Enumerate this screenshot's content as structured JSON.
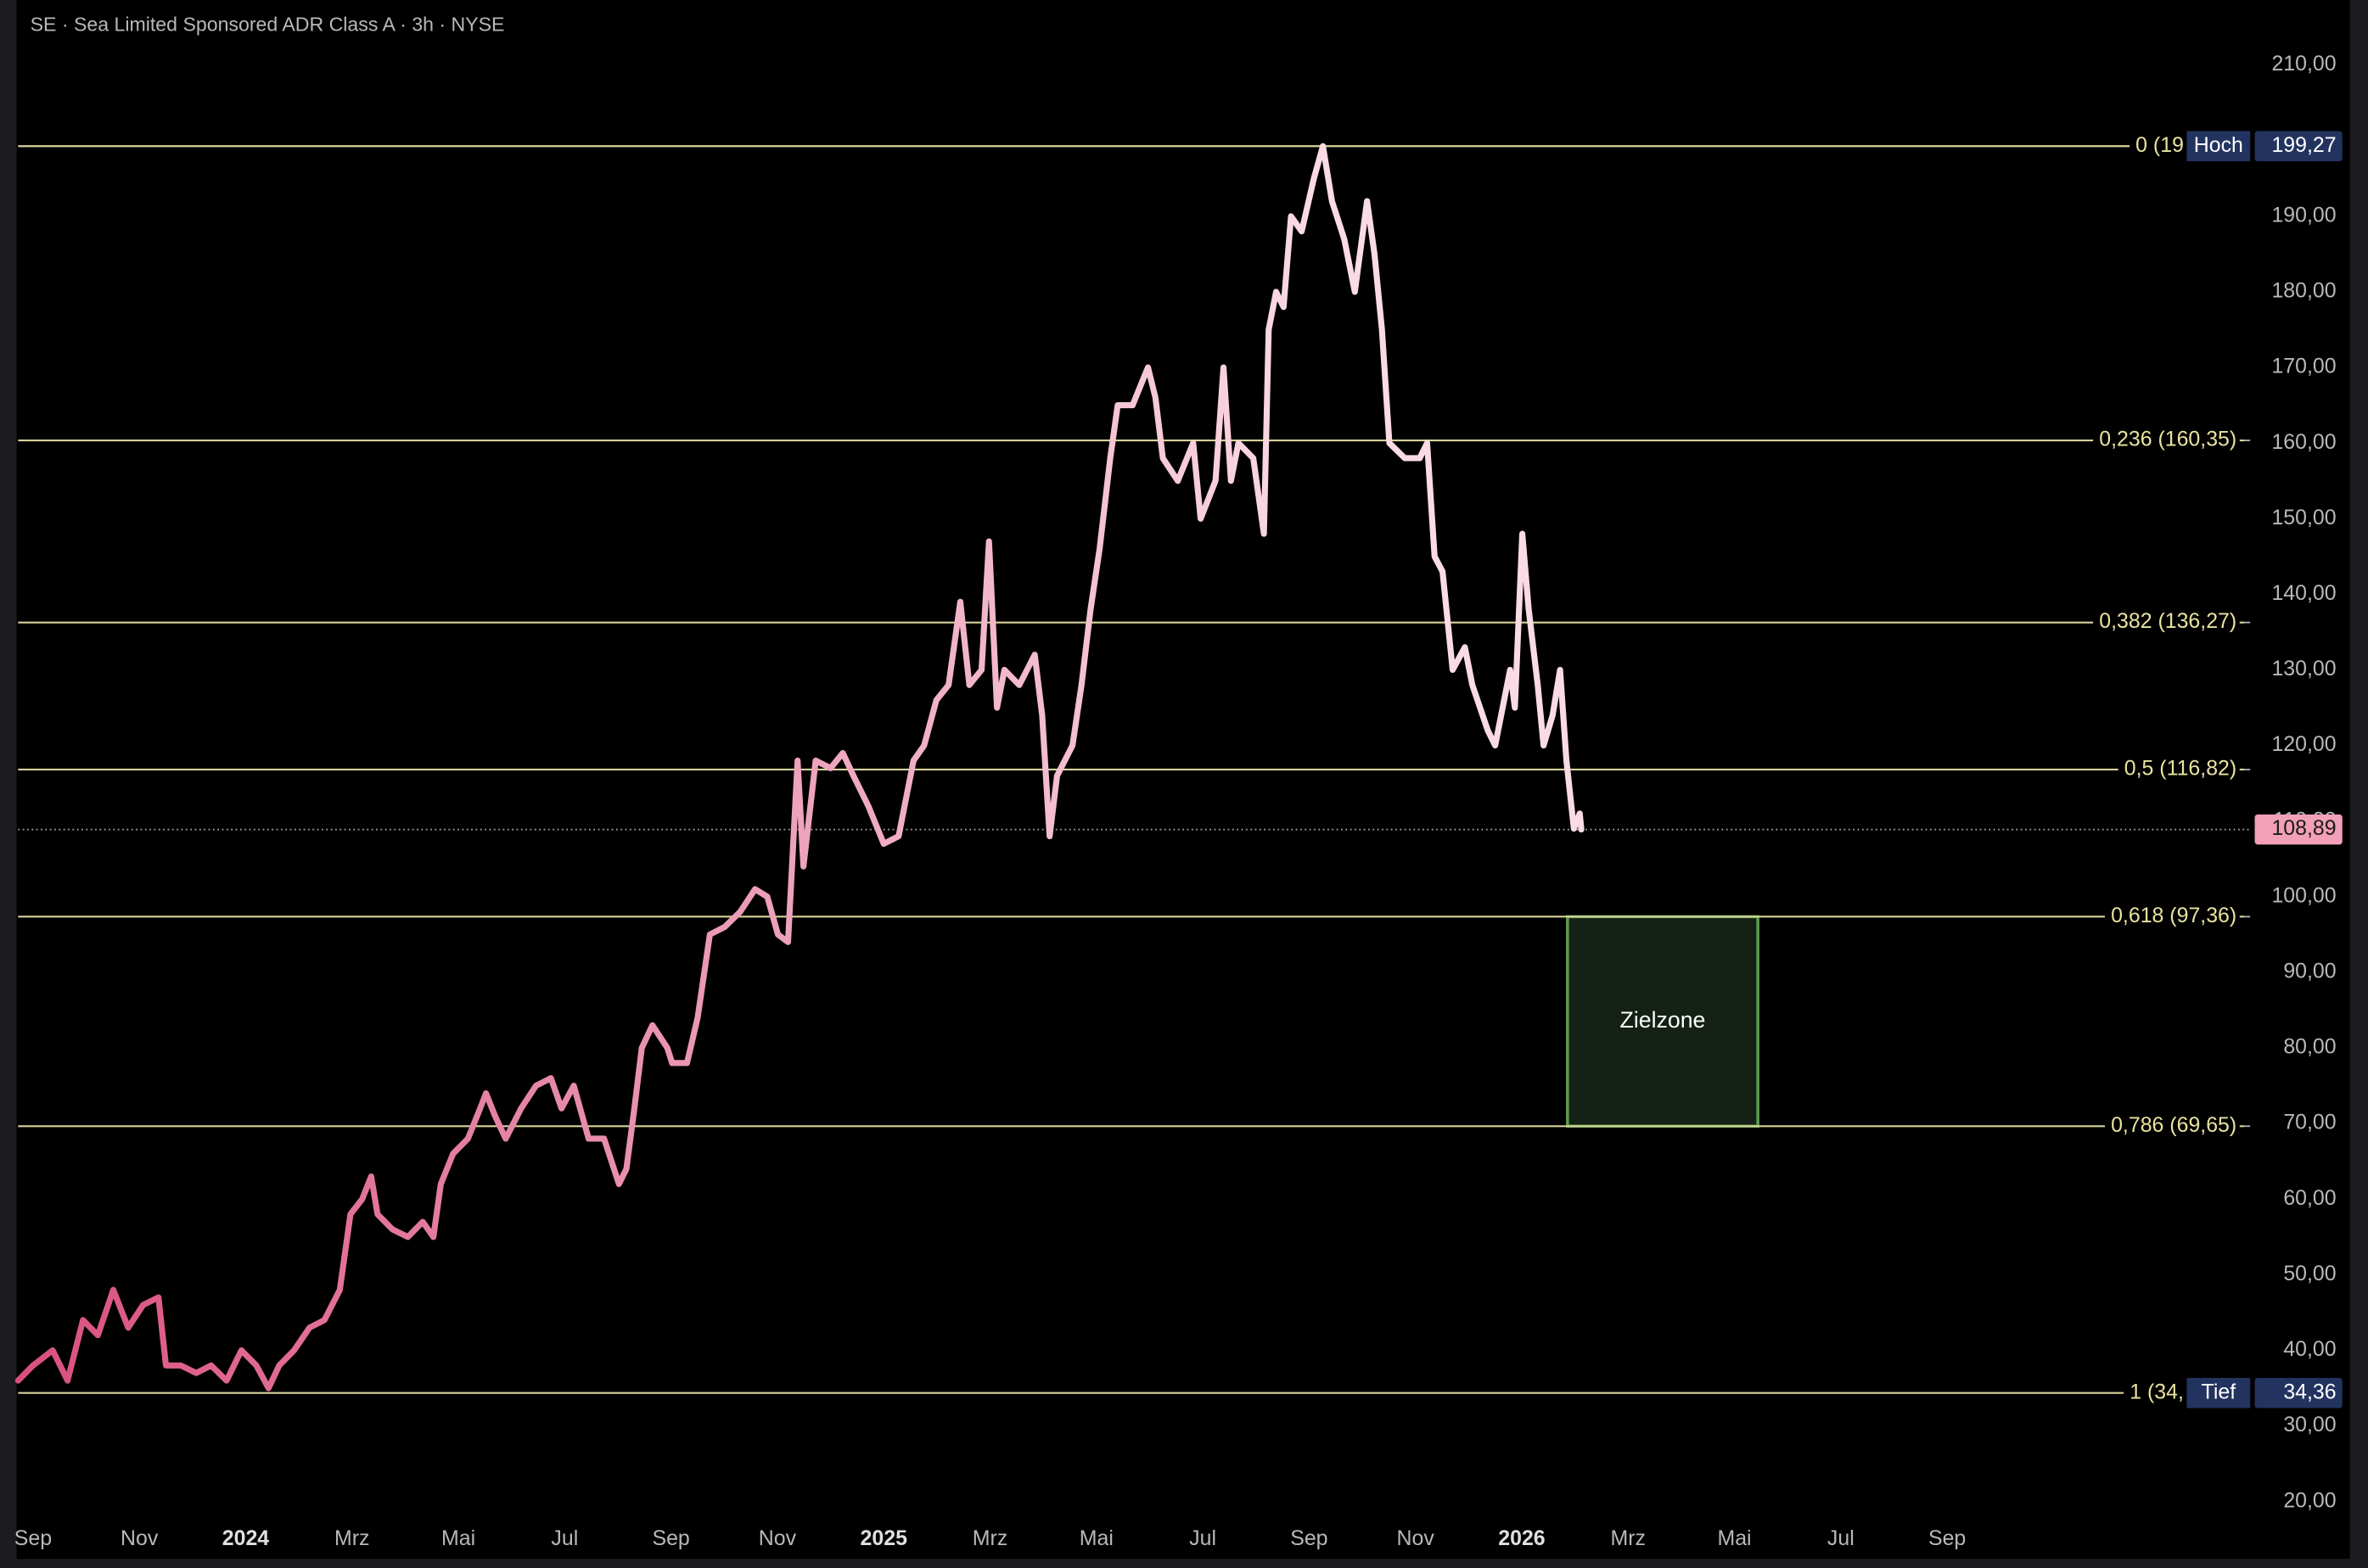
{
  "chart_data": {
    "type": "line",
    "title": "SE · Sea Limited Sponsored ADR Class A · 3h · NYSE",
    "colors": [
      "#d94f7f",
      "#fadbe4"
    ],
    "x": [
      -0.28,
      0,
      0.37,
      0.65,
      0.94,
      1.22,
      1.51,
      1.79,
      2.07,
      2.36,
      2.5,
      2.78,
      3.07,
      3.35,
      3.64,
      3.92,
      4.2,
      4.43,
      4.63,
      4.91,
      5.2,
      5.48,
      5.77,
      5.97,
      6.19,
      6.36,
      6.48,
      6.76,
      7.05,
      7.33,
      7.53,
      7.67,
      7.9,
      8.18,
      8.41,
      8.52,
      8.69,
      8.89,
      9.18,
      9.46,
      9.74,
      9.94,
      10.17,
      10.45,
      10.74,
      11.02,
      11.16,
      11.31,
      11.45,
      11.65,
      11.93,
      12.02,
      12.3,
      12.5,
      12.73,
      13.01,
      13.3,
      13.58,
      13.81,
      14.01,
      14.2,
      14.38,
      14.49,
      14.72,
      15,
      15.23,
      15.43,
      15.71,
      16,
      16.28,
      16.56,
      16.76,
      16.99,
      17.22,
      17.44,
      17.61,
      17.84,
      17.98,
      18.13,
      18.27,
      18.55,
      18.84,
      18.98,
      19.12,
      19.26,
      19.55,
      19.72,
      19.89,
      20.06,
      20.26,
      20.4,
      20.68,
      20.97,
      21.11,
      21.25,
      21.53,
      21.82,
      21.96,
      22.24,
      22.39,
      22.53,
      22.67,
      22.95,
      23.15,
      23.24,
      23.38,
      23.52,
      23.66,
      23.86,
      24.09,
      24.26,
      24.43,
      24.66,
      24.86,
      25.09,
      25.23,
      25.37,
      25.51,
      25.8,
      26.08,
      26.22,
      26.36,
      26.51,
      26.7,
      26.93,
      27.07,
      27.36,
      27.5,
      27.64,
      27.78,
      27.87,
      28.01,
      28.13,
      28.3,
      28.41,
      28.58,
      28.72,
      28.84,
      28.98,
      29.09,
      29.12
    ],
    "values": [
      36,
      38,
      40,
      36,
      44,
      42,
      48,
      43,
      46,
      47,
      38,
      38,
      37,
      38,
      36,
      40,
      38,
      35,
      38,
      40,
      43,
      44,
      48,
      58,
      60,
      63,
      58,
      56,
      55,
      57,
      55,
      62,
      66,
      68,
      72,
      74,
      71,
      68,
      72,
      75,
      76,
      72,
      75,
      68,
      68,
      62,
      64,
      72,
      80,
      83,
      80,
      78,
      78,
      84,
      95,
      96,
      98,
      101,
      100,
      95,
      94,
      118,
      104,
      118,
      117,
      119,
      116,
      112,
      107,
      108,
      118,
      120,
      126,
      128,
      139,
      128,
      130,
      147,
      125,
      130,
      128,
      132,
      124,
      108,
      116,
      120,
      128,
      138,
      146,
      158,
      165,
      165,
      170,
      166,
      158,
      155,
      160,
      150,
      155,
      170,
      155,
      160,
      158,
      148,
      175,
      180,
      178,
      190,
      188,
      195,
      199.27,
      192,
      187,
      180,
      192,
      185,
      175,
      160,
      158,
      158,
      160,
      145,
      143,
      130,
      133,
      128,
      122,
      120,
      125,
      130,
      125,
      148,
      138,
      128,
      120,
      124,
      130,
      118,
      109,
      111,
      108.89
    ],
    "xlim": [
      -0.28,
      41.7
    ],
    "ylim": [
      18,
      218.6
    ],
    "xticks": [
      {
        "value": 0,
        "label": "Sep"
      },
      {
        "value": 2,
        "label": "Nov"
      },
      {
        "value": 4,
        "label": "2024"
      },
      {
        "value": 6,
        "label": "Mrz"
      },
      {
        "value": 8,
        "label": "Mai"
      },
      {
        "value": 10,
        "label": "Jul"
      },
      {
        "value": 12,
        "label": "Sep"
      },
      {
        "value": 14,
        "label": "Nov"
      },
      {
        "value": 16,
        "label": "2025"
      },
      {
        "value": 18,
        "label": "Mrz"
      },
      {
        "value": 20,
        "label": "Mai"
      },
      {
        "value": 22,
        "label": "Jul"
      },
      {
        "value": 24,
        "label": "Sep"
      },
      {
        "value": 26,
        "label": "Nov"
      },
      {
        "value": 28,
        "label": "2026"
      },
      {
        "value": 30,
        "label": "Mrz"
      },
      {
        "value": 32,
        "label": "Mai"
      },
      {
        "value": 34,
        "label": "Jul"
      },
      {
        "value": 36,
        "label": "Sep"
      }
    ],
    "yticks": [
      {
        "value": 20,
        "label": "20,00"
      },
      {
        "value": 30,
        "label": "30,00"
      },
      {
        "value": 40,
        "label": "40,00"
      },
      {
        "value": 50,
        "label": "50,00"
      },
      {
        "value": 60,
        "label": "60,00"
      },
      {
        "value": 70,
        "label": "70,00"
      },
      {
        "value": 80,
        "label": "80,00"
      },
      {
        "value": 90,
        "label": "90,00"
      },
      {
        "value": 100,
        "label": "100,00"
      },
      {
        "value": 110,
        "label": "110,00"
      },
      {
        "value": 120,
        "label": "120,00"
      },
      {
        "value": 130,
        "label": "130,00"
      },
      {
        "value": 140,
        "label": "140,00"
      },
      {
        "value": 150,
        "label": "150,00"
      },
      {
        "value": 160,
        "label": "160,00"
      },
      {
        "value": 170,
        "label": "170,00"
      },
      {
        "value": 180,
        "label": "180,00"
      },
      {
        "value": 190,
        "label": "190,00"
      },
      {
        "value": 200,
        "label": "200,00"
      },
      {
        "value": 210,
        "label": "210,00"
      }
    ],
    "levels": [
      {
        "value": 199.27,
        "label": "0 (19",
        "badge": "Hoch",
        "price_label": "199,27"
      },
      {
        "value": 160.35,
        "label": "0,236 (160,35)"
      },
      {
        "value": 136.27,
        "label": "0,382 (136,27)"
      },
      {
        "value": 116.82,
        "label": "0,5 (116,82)"
      },
      {
        "value": 97.36,
        "label": "0,618 (97,36)"
      },
      {
        "value": 69.65,
        "label": "0,786 (69,65)"
      },
      {
        "value": 34.36,
        "label": "1 (34,",
        "badge": "Tief",
        "price_label": "34,36"
      }
    ],
    "last_price": {
      "value": 108.89,
      "label": "108,89"
    },
    "zone": {
      "label": "Zielzone",
      "x": [
        28.86,
        32.44
      ],
      "y": [
        69.65,
        97.36
      ]
    }
  }
}
